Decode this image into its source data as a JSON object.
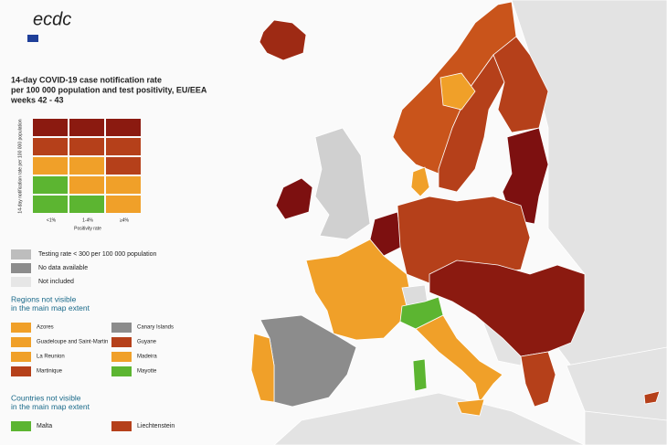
{
  "logo": "ecdc",
  "title": [
    "14-day COVID-19 case notification rate",
    "per 100 000 population and test positivity, EU/EEA",
    "weeks 42 - 43"
  ],
  "matrix": {
    "y_label": "14-day notification rate per 100 000 population",
    "x_label": "Positivity rate",
    "columns": [
      "<1%",
      "1-4%",
      "≥4%"
    ],
    "rows": [
      [
        "#8b1a10",
        "#8b1a10",
        "#8b1a10"
      ],
      [
        "#b5401a",
        "#b5401a",
        "#b5401a"
      ],
      [
        "#f0a029",
        "#f0a029",
        "#b5401a"
      ],
      [
        "#5cb531",
        "#f0a029",
        "#f0a029"
      ],
      [
        "#5cb531",
        "#5cb531",
        "#f0a029"
      ]
    ]
  },
  "legend": [
    {
      "label": "Testing rate < 300 per 100 000 population",
      "color": "#bdbdbd"
    },
    {
      "label": "No data available",
      "color": "#8c8c8c"
    },
    {
      "label": "Not included",
      "color": "#e6e6e6"
    }
  ],
  "regions_heading": "Regions not visible in the main map extent",
  "regions": [
    {
      "label": "Azores",
      "color": "#f0a029"
    },
    {
      "label": "Canary Islands",
      "color": "#8c8c8c"
    },
    {
      "label": "Guadeloupe and Saint-Martin",
      "color": "#f0a029"
    },
    {
      "label": "Guyane",
      "color": "#b5401a"
    },
    {
      "label": "La Reunion",
      "color": "#f0a029"
    },
    {
      "label": "Madeira",
      "color": "#f0a029"
    },
    {
      "label": "Martinique",
      "color": "#b5401a"
    },
    {
      "label": "Mayotte",
      "color": "#5cb531"
    }
  ],
  "countries_heading": "Countries not visible in the main map extent",
  "countries": [
    {
      "label": "Malta",
      "color": "#5cb531"
    },
    {
      "label": "Liechtenstein",
      "color": "#b5401a"
    }
  ]
}
